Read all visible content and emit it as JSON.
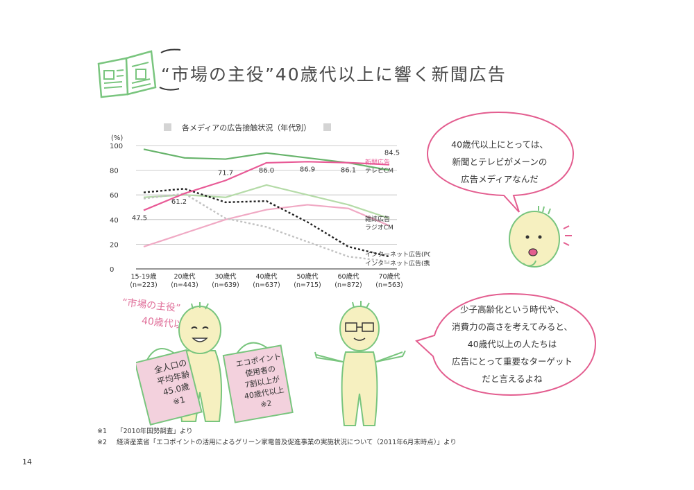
{
  "page": {
    "title": "“市場の主役”40歳代以上に響く新聞広告",
    "page_number": "14"
  },
  "chart": {
    "title": "各メディアの広告接触状況（年代別）"
  },
  "chart_data": {
    "type": "line",
    "title": "各メディアの広告接触状況（年代別）",
    "ylabel": "(%)",
    "ylim": [
      0,
      100
    ],
    "yticks": [
      "0",
      "20",
      "40",
      "60",
      "80",
      "100"
    ],
    "categories": [
      "15-19歳",
      "20歳代",
      "30歳代",
      "40歳代",
      "50歳代",
      "60歳代",
      "70歳代"
    ],
    "category_sublabels": [
      "(n=223)",
      "(n=443)",
      "(n=639)",
      "(n=637)",
      "(n=715)",
      "(n=872)",
      "(n=563)"
    ],
    "grid": true,
    "series": [
      {
        "name": "新聞広告",
        "color": "#e85a96",
        "dash": "solid",
        "values": [
          47.5,
          61.2,
          71.7,
          86.0,
          86.9,
          86.1,
          84.5
        ],
        "labels": [
          "47.5",
          "61.2",
          "71.7",
          "86.0",
          "86.9",
          "86.1",
          "84.5"
        ]
      },
      {
        "name": "テレビCM",
        "color": "#66b36a",
        "dash": "solid",
        "values": [
          97,
          90,
          89,
          94,
          90,
          86,
          80
        ]
      },
      {
        "name": "雑誌広告",
        "color": "#b5dba8",
        "dash": "solid",
        "values": [
          58,
          60,
          58,
          68,
          60,
          52,
          41
        ]
      },
      {
        "name": "ラジオCM",
        "color": "#f0a9c4",
        "dash": "solid",
        "values": [
          18,
          29,
          40,
          48,
          52,
          49,
          35
        ]
      },
      {
        "name": "インターネット広告(PC)",
        "color": "#222222",
        "dash": "dotted",
        "values": [
          62,
          65,
          54,
          55,
          38,
          18,
          10
        ]
      },
      {
        "name": "インターネット広告(携帯)",
        "color": "#c2c2c2",
        "dash": "dotted",
        "values": [
          57,
          61,
          41,
          34,
          22,
          10,
          6
        ]
      }
    ]
  },
  "bubbles": {
    "top": [
      "40歳代以上にとっては、",
      "新聞とテレビがメーンの",
      "広告メディアなんだ"
    ],
    "bottom": [
      "少子高齢化という時代や、",
      "消費力の高さを考えてみると、",
      "40歳代以上の人たちは",
      "広告にとって重要なターゲット",
      "だと言えるよね"
    ]
  },
  "handwriting": {
    "label_line1": "“市場の主役”",
    "label_line2": "40歳代以上",
    "bag_left": [
      "全人口の",
      "平均年齢",
      "45.0歳",
      "※1"
    ],
    "bag_right": [
      "エコポイント",
      "使用者の",
      "7割以上が",
      "40歳代以上",
      "※2"
    ]
  },
  "footnotes": {
    "note1_mark": "※1",
    "note1_text": "「2010年国勢調査」より",
    "note2_mark": "※2",
    "note2_text": "経済産業省「エコポイントの活用によるグリーン家電普及促進事業の実施状況について（2011年6月末時点）」より"
  },
  "colors": {
    "newspaper_icon": "#79c57e",
    "bubble_border": "#e35d8f",
    "character_fill": "#f6f0c0",
    "bag_fill": "#f3d1dd"
  }
}
